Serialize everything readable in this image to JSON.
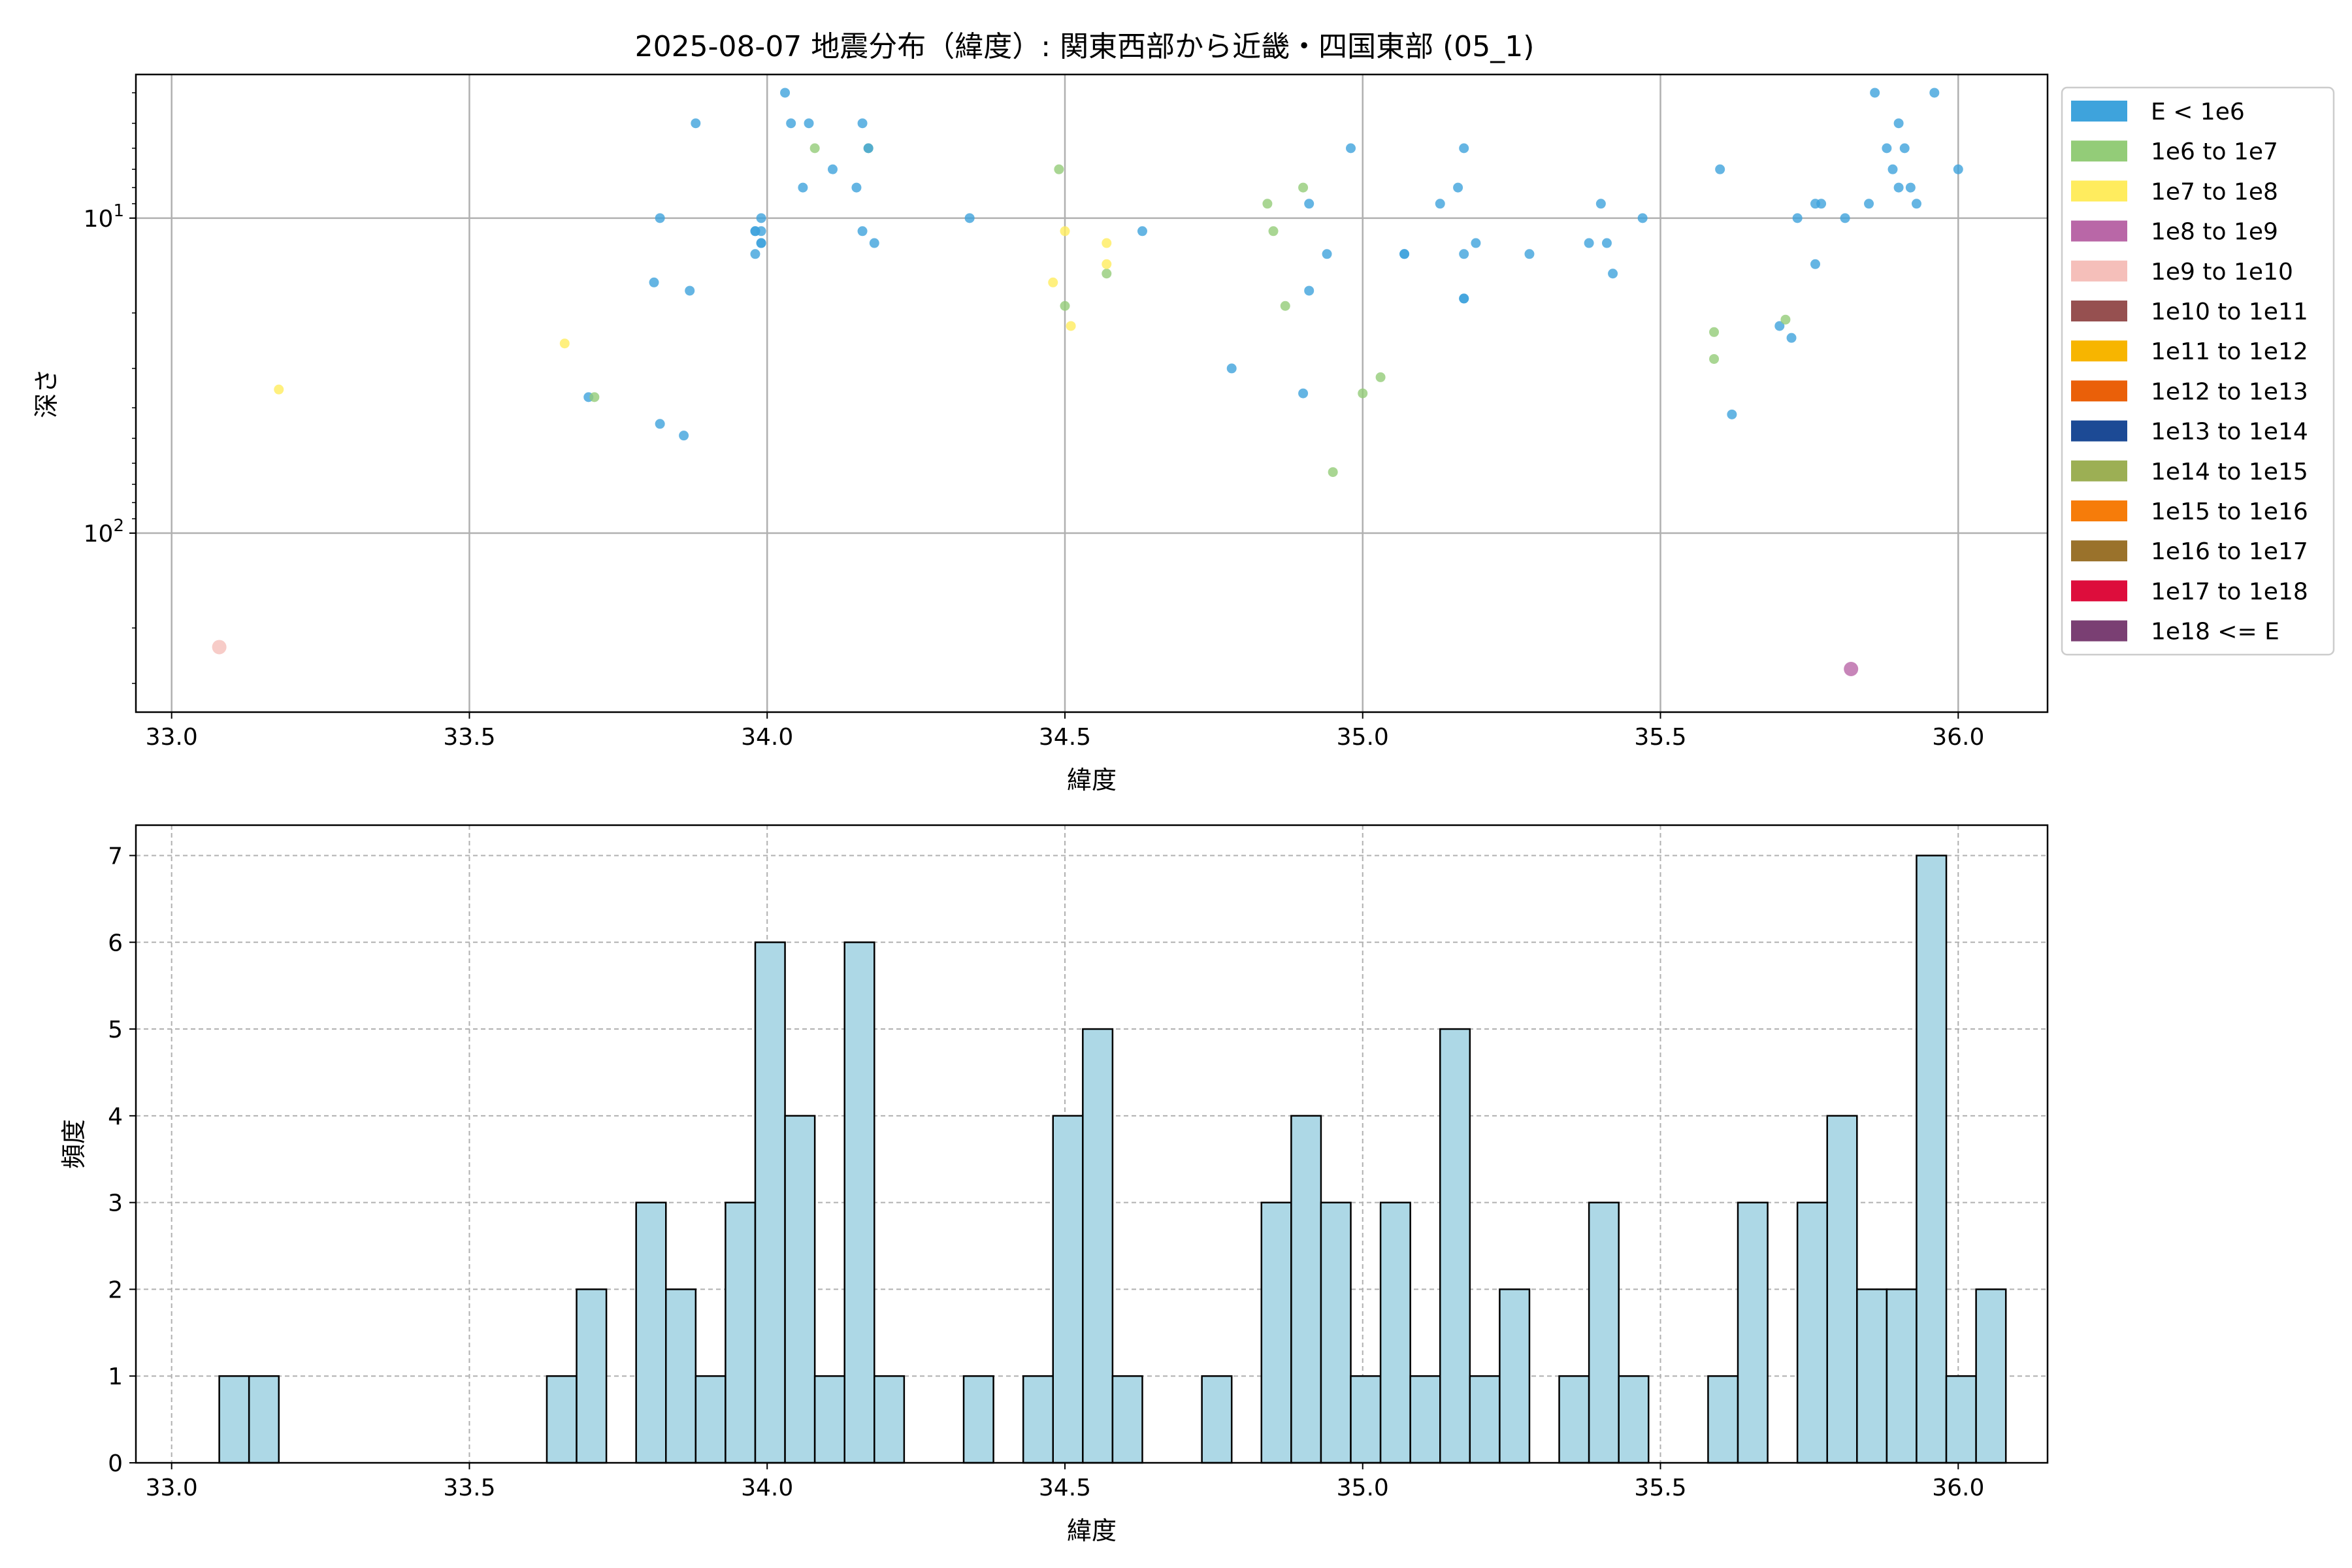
{
  "figure": {
    "title": "2025-08-07 地震分布（緯度）: 関東西部から近畿・四国東部 (05_1)"
  },
  "chart_data": [
    {
      "type": "scatter",
      "xlabel": "緯度",
      "ylabel": "深さ",
      "xlim": [
        32.94,
        36.15
      ],
      "ylim": [
        370,
        3.5
      ],
      "y_scale": "log",
      "y_inverted": true,
      "x_ticks": [
        "33.0",
        "33.5",
        "34.0",
        "34.5",
        "35.0",
        "35.5",
        "36.0"
      ],
      "y_ticks": [
        {
          "value": 10,
          "base": "10",
          "exp": "1"
        },
        {
          "value": 100,
          "base": "10",
          "exp": "2"
        }
      ],
      "grid": true,
      "legend_position": "outside-right",
      "legend": [
        {
          "label": "E < 1e6",
          "color": "#3ea3dc"
        },
        {
          "label": "1e6 to 1e7",
          "color": "#93cc78"
        },
        {
          "label": "1e7 to 1e8",
          "color": "#ffec5e"
        },
        {
          "label": "1e8 to 1e9",
          "color": "#b967a7"
        },
        {
          "label": "1e9 to 1e10",
          "color": "#f5bfba"
        },
        {
          "label": "1e10 to 1e11",
          "color": "#965050"
        },
        {
          "label": "1e11 to 1e12",
          "color": "#f7b500"
        },
        {
          "label": "1e12 to 1e13",
          "color": "#ea6009"
        },
        {
          "label": "1e13 to 1e14",
          "color": "#1c4a95"
        },
        {
          "label": "1e14 to 1e15",
          "color": "#9caf54"
        },
        {
          "label": "1e15 to 1e16",
          "color": "#f67c0a"
        },
        {
          "label": "1e16 to 1e17",
          "color": "#9a722b"
        },
        {
          "label": "1e17 to 1e18",
          "color": "#dd0d3c"
        },
        {
          "label": "1e18 <= E",
          "color": "#7a3f73"
        }
      ],
      "points": [
        [
          33.08,
          230,
          4
        ],
        [
          33.18,
          35,
          2
        ],
        [
          33.66,
          25,
          2
        ],
        [
          33.7,
          37,
          0
        ],
        [
          33.71,
          37,
          1
        ],
        [
          33.81,
          16,
          0
        ],
        [
          33.82,
          10,
          0
        ],
        [
          33.82,
          45,
          0
        ],
        [
          33.86,
          49,
          0
        ],
        [
          33.87,
          17,
          0
        ],
        [
          33.88,
          5,
          0
        ],
        [
          33.98,
          11,
          0
        ],
        [
          33.98,
          11,
          0
        ],
        [
          33.99,
          11,
          0
        ],
        [
          33.98,
          13,
          0
        ],
        [
          33.99,
          12,
          0
        ],
        [
          33.99,
          10,
          0
        ],
        [
          33.99,
          12,
          0
        ],
        [
          34.03,
          4,
          0
        ],
        [
          34.04,
          5,
          0
        ],
        [
          34.06,
          8,
          0
        ],
        [
          34.07,
          5,
          0
        ],
        [
          34.08,
          6,
          1
        ],
        [
          34.11,
          7,
          0
        ],
        [
          34.15,
          8,
          0
        ],
        [
          34.16,
          5,
          0
        ],
        [
          34.16,
          11,
          0
        ],
        [
          34.17,
          6,
          1
        ],
        [
          34.17,
          6,
          0
        ],
        [
          34.18,
          12,
          0
        ],
        [
          34.34,
          10,
          0
        ],
        [
          34.48,
          16,
          2
        ],
        [
          34.49,
          7,
          1
        ],
        [
          34.5,
          19,
          1
        ],
        [
          34.5,
          11,
          2
        ],
        [
          34.51,
          22,
          2
        ],
        [
          34.57,
          15,
          1
        ],
        [
          34.57,
          14,
          2
        ],
        [
          34.57,
          12,
          2
        ],
        [
          34.63,
          11,
          0
        ],
        [
          34.78,
          30,
          0
        ],
        [
          34.84,
          9,
          1
        ],
        [
          34.85,
          11,
          1
        ],
        [
          34.87,
          19,
          1
        ],
        [
          34.9,
          36,
          0
        ],
        [
          34.9,
          8,
          1
        ],
        [
          34.91,
          17,
          0
        ],
        [
          34.91,
          9,
          0
        ],
        [
          34.94,
          13,
          0
        ],
        [
          34.95,
          64,
          1
        ],
        [
          34.98,
          6,
          0
        ],
        [
          35.0,
          36,
          1
        ],
        [
          35.03,
          32,
          1
        ],
        [
          35.07,
          13,
          0
        ],
        [
          35.07,
          13,
          0
        ],
        [
          35.13,
          9,
          0
        ],
        [
          35.16,
          8,
          0
        ],
        [
          35.17,
          18,
          0
        ],
        [
          35.17,
          6,
          0
        ],
        [
          35.17,
          18,
          0
        ],
        [
          35.17,
          13,
          0
        ],
        [
          35.19,
          12,
          0
        ],
        [
          35.28,
          13,
          0
        ],
        [
          35.38,
          12,
          0
        ],
        [
          35.4,
          9,
          0
        ],
        [
          35.41,
          12,
          0
        ],
        [
          35.42,
          15,
          0
        ],
        [
          35.47,
          10,
          0
        ],
        [
          35.59,
          28,
          1
        ],
        [
          35.59,
          23,
          1
        ],
        [
          35.6,
          7,
          0
        ],
        [
          35.62,
          42,
          0
        ],
        [
          35.7,
          22,
          0
        ],
        [
          35.71,
          21,
          1
        ],
        [
          35.72,
          24,
          0
        ],
        [
          35.73,
          10,
          0
        ],
        [
          35.76,
          14,
          0
        ],
        [
          35.76,
          9,
          0
        ],
        [
          35.77,
          9,
          0
        ],
        [
          35.81,
          10,
          0
        ],
        [
          35.82,
          270,
          3
        ],
        [
          35.85,
          9,
          0
        ],
        [
          35.86,
          4,
          0
        ],
        [
          35.88,
          6,
          0
        ],
        [
          35.89,
          7,
          0
        ],
        [
          35.9,
          5,
          0
        ],
        [
          35.9,
          8,
          0
        ],
        [
          35.91,
          6,
          0
        ],
        [
          35.92,
          8,
          0
        ],
        [
          35.93,
          9,
          0
        ],
        [
          35.96,
          4,
          0
        ],
        [
          36.0,
          7,
          0
        ]
      ]
    },
    {
      "type": "bar",
      "subtype": "histogram",
      "xlabel": "緯度",
      "ylabel": "頻度",
      "xlim": [
        32.94,
        36.15
      ],
      "ylim": [
        0,
        7.35
      ],
      "x_ticks": [
        "33.0",
        "33.5",
        "34.0",
        "34.5",
        "35.0",
        "35.5",
        "36.0"
      ],
      "y_ticks": [
        "0",
        "1",
        "2",
        "3",
        "4",
        "5",
        "6",
        "7"
      ],
      "bin_start": 33.08,
      "bin_width": 0.05,
      "values": [
        1,
        1,
        0,
        0,
        0,
        0,
        0,
        0,
        0,
        0,
        0,
        1,
        2,
        0,
        3,
        2,
        1,
        3,
        6,
        4,
        1,
        6,
        1,
        0,
        0,
        1,
        0,
        1,
        4,
        5,
        1,
        0,
        0,
        1,
        0,
        3,
        4,
        3,
        1,
        3,
        1,
        5,
        1,
        2,
        0,
        1,
        3,
        1,
        0,
        0,
        1,
        3,
        0,
        3,
        4,
        2,
        2,
        7,
        1,
        2
      ],
      "bar_color": "#add8e6",
      "edge_color": "#000000",
      "grid": "dashed"
    }
  ]
}
